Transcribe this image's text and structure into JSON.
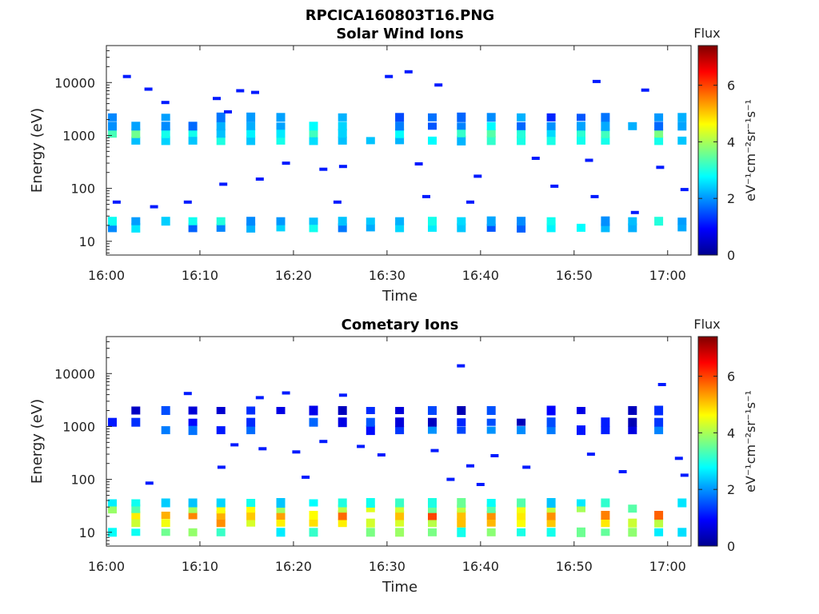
{
  "figure_title": "RPCICA160803T16.PNG",
  "chart_data": [
    {
      "type": "heatmap",
      "title": "Solar Wind Ions",
      "xlabel": "Time",
      "ylabel": "Energy (eV)",
      "x_tick_labels": [
        "16:00",
        "16:10",
        "16:20",
        "16:30",
        "16:40",
        "16:50",
        "17:00"
      ],
      "x_ticks_minutes": [
        0,
        10,
        20,
        30,
        40,
        50,
        60
      ],
      "xlim_minutes": [
        0,
        62.5
      ],
      "y_scale": "log",
      "ylim": [
        5.5,
        50000
      ],
      "y_tick_labels": [
        "10",
        "100",
        "1000",
        "10000"
      ],
      "y_ticks": [
        10,
        100,
        1000,
        10000
      ],
      "colorbar": {
        "label": "Flux",
        "unit": "eV⁻¹cm⁻²sr⁻¹s⁻¹",
        "range": [
          0,
          7.4
        ],
        "ticks": [
          "0",
          "2",
          "4",
          "6"
        ],
        "colormap": "jet"
      },
      "scan_times_minutes": [
        0.6,
        3.1,
        6.3,
        9.2,
        12.2,
        15.4,
        18.6,
        22.1,
        25.2,
        28.2,
        31.3,
        34.8,
        37.9,
        41.1,
        44.3,
        47.5,
        50.7,
        53.3,
        56.2,
        59.0,
        61.5
      ],
      "bands": [
        {
          "energy_eV": 18,
          "flux": 2.2
        },
        {
          "energy_eV": 24,
          "flux": 2.6
        },
        {
          "energy_eV": 800,
          "flux": 2.5
        },
        {
          "energy_eV": 1100,
          "flux": 3.0
        },
        {
          "energy_eV": 1500,
          "flux": 2.2
        },
        {
          "energy_eV": 2200,
          "flux": 1.8
        }
      ],
      "scattered_points": [
        {
          "t": 2.2,
          "e": 13000
        },
        {
          "t": 4.5,
          "e": 7500
        },
        {
          "t": 6.3,
          "e": 4200
        },
        {
          "t": 11.8,
          "e": 5000
        },
        {
          "t": 14.3,
          "e": 7000
        },
        {
          "t": 15.9,
          "e": 6500
        },
        {
          "t": 30.2,
          "e": 13000
        },
        {
          "t": 32.3,
          "e": 16000
        },
        {
          "t": 35.5,
          "e": 9000
        },
        {
          "t": 52.4,
          "e": 10500
        },
        {
          "t": 57.6,
          "e": 7200
        },
        {
          "t": 13.0,
          "e": 2800
        },
        {
          "t": 19.2,
          "e": 300
        },
        {
          "t": 23.2,
          "e": 230
        },
        {
          "t": 25.3,
          "e": 260
        },
        {
          "t": 33.4,
          "e": 290
        },
        {
          "t": 39.7,
          "e": 170
        },
        {
          "t": 45.9,
          "e": 370
        },
        {
          "t": 51.6,
          "e": 340
        },
        {
          "t": 59.2,
          "e": 250
        },
        {
          "t": 1.1,
          "e": 55
        },
        {
          "t": 5.1,
          "e": 45
        },
        {
          "t": 8.7,
          "e": 55
        },
        {
          "t": 12.5,
          "e": 120
        },
        {
          "t": 16.4,
          "e": 150
        },
        {
          "t": 24.7,
          "e": 55
        },
        {
          "t": 34.2,
          "e": 70
        },
        {
          "t": 38.9,
          "e": 55
        },
        {
          "t": 47.9,
          "e": 110
        },
        {
          "t": 52.2,
          "e": 70
        },
        {
          "t": 56.5,
          "e": 35
        },
        {
          "t": 61.8,
          "e": 95
        }
      ]
    },
    {
      "type": "heatmap",
      "title": "Cometary Ions",
      "xlabel": "Time",
      "ylabel": "Energy (eV)",
      "x_tick_labels": [
        "16:00",
        "16:10",
        "16:20",
        "16:30",
        "16:40",
        "16:50",
        "17:00"
      ],
      "x_ticks_minutes": [
        0,
        10,
        20,
        30,
        40,
        50,
        60
      ],
      "xlim_minutes": [
        0,
        62.5
      ],
      "y_scale": "log",
      "ylim": [
        5.5,
        50000
      ],
      "y_tick_labels": [
        "10",
        "100",
        "1000",
        "10000"
      ],
      "y_ticks": [
        10,
        100,
        1000,
        10000
      ],
      "colorbar": {
        "label": "Flux",
        "unit": "eV⁻¹cm⁻²sr⁻¹s⁻¹",
        "range": [
          0,
          7.4
        ],
        "ticks": [
          "0",
          "2",
          "4",
          "6"
        ],
        "colormap": "jet"
      },
      "scan_times_minutes": [
        0.6,
        3.1,
        6.3,
        9.2,
        12.2,
        15.4,
        18.6,
        22.1,
        25.2,
        28.2,
        31.3,
        34.8,
        37.9,
        41.1,
        44.3,
        47.5,
        50.7,
        53.3,
        56.2,
        59.0,
        61.5
      ],
      "bands": [
        {
          "energy_eV": 10,
          "flux": 3.2
        },
        {
          "energy_eV": 15,
          "flux": 4.8
        },
        {
          "energy_eV": 21,
          "flux": 5.3
        },
        {
          "energy_eV": 28,
          "flux": 4.0
        },
        {
          "energy_eV": 36,
          "flux": 3.0
        },
        {
          "energy_eV": 850,
          "flux": 1.4
        },
        {
          "energy_eV": 1200,
          "flux": 1.0
        },
        {
          "energy_eV": 2000,
          "flux": 0.9
        }
      ],
      "scattered_points": [
        {
          "t": 8.7,
          "e": 4200
        },
        {
          "t": 16.4,
          "e": 3500
        },
        {
          "t": 19.2,
          "e": 4300
        },
        {
          "t": 25.3,
          "e": 3900
        },
        {
          "t": 37.9,
          "e": 14000
        },
        {
          "t": 59.4,
          "e": 6200
        },
        {
          "t": 13.7,
          "e": 450
        },
        {
          "t": 16.7,
          "e": 380
        },
        {
          "t": 20.3,
          "e": 330
        },
        {
          "t": 23.2,
          "e": 520
        },
        {
          "t": 27.2,
          "e": 420
        },
        {
          "t": 29.4,
          "e": 290
        },
        {
          "t": 35.1,
          "e": 350
        },
        {
          "t": 38.9,
          "e": 180
        },
        {
          "t": 41.5,
          "e": 280
        },
        {
          "t": 44.9,
          "e": 170
        },
        {
          "t": 51.8,
          "e": 300
        },
        {
          "t": 55.2,
          "e": 140
        },
        {
          "t": 12.3,
          "e": 170
        },
        {
          "t": 21.3,
          "e": 110
        },
        {
          "t": 36.8,
          "e": 100
        },
        {
          "t": 4.6,
          "e": 85
        },
        {
          "t": 40.0,
          "e": 80
        },
        {
          "t": 61.8,
          "e": 120
        },
        {
          "t": 61.2,
          "e": 250
        }
      ]
    }
  ]
}
